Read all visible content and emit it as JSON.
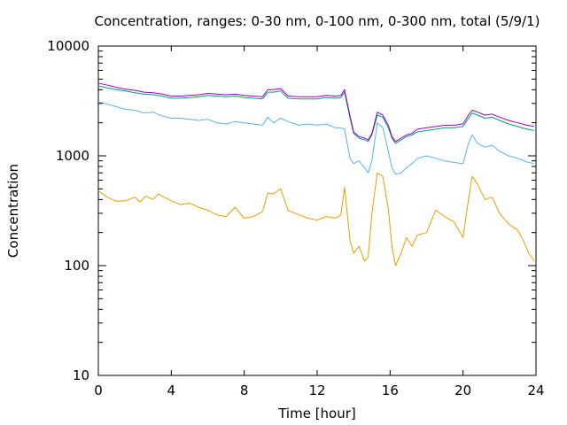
{
  "chart_data": {
    "type": "line",
    "title": "Concentration, ranges: 0-30 nm, 0-100 nm, 0-300 nm, total (5/9/1)",
    "xlabel": "Time [hour]",
    "ylabel": "Concentration",
    "xlim": [
      0,
      24
    ],
    "ylim": [
      10,
      10000
    ],
    "yscale": "log",
    "grid": false,
    "xticks": [
      0,
      4,
      8,
      12,
      16,
      20,
      24
    ],
    "xtick_labels": [
      "0",
      "4",
      "8",
      "12",
      "16",
      "20",
      "24"
    ],
    "yticks": [
      10,
      100,
      1000,
      10000
    ],
    "ytick_labels": [
      "10",
      "100",
      "1000",
      "10000"
    ],
    "series": [
      {
        "color": "#E69F00",
        "x": [
          0,
          0.5,
          1,
          1.5,
          2,
          2.3,
          2.6,
          3,
          3.3,
          3.6,
          4,
          4.5,
          5,
          5.5,
          6,
          6.5,
          7,
          7.5,
          8,
          8.5,
          9,
          9.3,
          9.6,
          10,
          10.4,
          11,
          11.5,
          12,
          12.5,
          13,
          13.3,
          13.5,
          13.8,
          14,
          14.3,
          14.6,
          14.8,
          15,
          15.3,
          15.6,
          15.9,
          16.1,
          16.3,
          16.6,
          16.9,
          17.2,
          17.5,
          18,
          18.5,
          19,
          19.5,
          20,
          20.3,
          20.5,
          20.8,
          21.2,
          21.6,
          22,
          22.5,
          23,
          23.3,
          23.6,
          23.9
        ],
        "values": [
          480,
          420,
          385,
          390,
          420,
          380,
          430,
          400,
          450,
          420,
          390,
          360,
          370,
          340,
          320,
          290,
          280,
          340,
          270,
          280,
          310,
          460,
          450,
          500,
          320,
          290,
          270,
          260,
          280,
          270,
          290,
          520,
          170,
          130,
          150,
          110,
          120,
          300,
          700,
          650,
          330,
          150,
          100,
          130,
          180,
          150,
          190,
          200,
          320,
          280,
          250,
          180,
          400,
          650,
          550,
          400,
          420,
          300,
          240,
          210,
          170,
          130,
          110
        ]
      },
      {
        "color": "#56B4E9",
        "x": [
          0,
          0.5,
          1,
          1.5,
          2,
          2.5,
          3,
          3.5,
          4,
          4.5,
          5,
          5.5,
          6,
          6.5,
          7,
          7.5,
          8,
          8.5,
          9,
          9.3,
          9.6,
          10,
          10.4,
          11,
          11.5,
          12,
          12.5,
          13,
          13.3,
          13.5,
          13.8,
          14,
          14.3,
          14.6,
          14.8,
          15,
          15.3,
          15.6,
          15.9,
          16.1,
          16.3,
          16.6,
          16.9,
          17.2,
          17.5,
          18,
          18.5,
          19,
          19.5,
          20,
          20.3,
          20.5,
          20.8,
          21.2,
          21.6,
          22,
          22.5,
          23,
          23.5,
          23.9
        ],
        "values": [
          3100,
          2950,
          2800,
          2650,
          2600,
          2450,
          2500,
          2300,
          2200,
          2200,
          2150,
          2100,
          2150,
          2000,
          1950,
          2050,
          2000,
          1950,
          1900,
          2250,
          2000,
          2200,
          2050,
          1900,
          1950,
          1900,
          1950,
          1800,
          1800,
          1750,
          950,
          850,
          900,
          780,
          700,
          900,
          2000,
          1800,
          1100,
          780,
          680,
          700,
          780,
          850,
          950,
          1000,
          950,
          900,
          870,
          850,
          1300,
          1550,
          1300,
          1200,
          1250,
          1100,
          1000,
          950,
          880,
          850
        ]
      },
      {
        "color": "#009E73",
        "x": [
          0,
          0.5,
          1,
          1.5,
          2,
          2.5,
          3,
          3.5,
          4,
          4.5,
          5,
          5.5,
          6,
          6.5,
          7,
          7.5,
          8,
          8.5,
          9,
          9.3,
          9.6,
          10,
          10.4,
          11,
          11.5,
          12,
          12.5,
          13,
          13.3,
          13.5,
          13.8,
          14,
          14.3,
          14.6,
          14.8,
          15,
          15.3,
          15.6,
          15.9,
          16.1,
          16.3,
          16.6,
          16.9,
          17.2,
          17.5,
          18,
          18.5,
          19,
          19.5,
          20,
          20.3,
          20.5,
          20.8,
          21.2,
          21.6,
          22,
          22.5,
          23,
          23.5,
          23.9
        ],
        "values": [
          4350,
          4150,
          4000,
          3900,
          3750,
          3650,
          3600,
          3500,
          3350,
          3350,
          3400,
          3450,
          3550,
          3500,
          3450,
          3500,
          3400,
          3350,
          3300,
          3800,
          3800,
          3900,
          3350,
          3300,
          3300,
          3300,
          3400,
          3350,
          3400,
          3800,
          2200,
          1600,
          1450,
          1400,
          1350,
          1550,
          2350,
          2250,
          1800,
          1450,
          1300,
          1400,
          1500,
          1550,
          1650,
          1700,
          1750,
          1800,
          1800,
          1850,
          2200,
          2450,
          2350,
          2200,
          2250,
          2100,
          1950,
          1850,
          1750,
          1700
        ]
      },
      {
        "color": "#9400D3",
        "x": [
          0,
          0.5,
          1,
          1.5,
          2,
          2.5,
          3,
          3.5,
          4,
          4.5,
          5,
          5.5,
          6,
          6.5,
          7,
          7.5,
          8,
          8.5,
          9,
          9.3,
          9.6,
          10,
          10.4,
          11,
          11.5,
          12,
          12.5,
          13,
          13.3,
          13.5,
          13.8,
          14,
          14.3,
          14.6,
          14.8,
          15,
          15.3,
          15.6,
          15.9,
          16.1,
          16.3,
          16.6,
          16.9,
          17.2,
          17.5,
          18,
          18.5,
          19,
          19.5,
          20,
          20.3,
          20.5,
          20.8,
          21.2,
          21.6,
          22,
          22.5,
          23,
          23.5,
          23.9
        ],
        "values": [
          4600,
          4400,
          4200,
          4050,
          3950,
          3800,
          3750,
          3650,
          3500,
          3500,
          3550,
          3600,
          3700,
          3650,
          3600,
          3650,
          3550,
          3500,
          3450,
          4000,
          4000,
          4100,
          3500,
          3450,
          3450,
          3450,
          3550,
          3500,
          3550,
          4000,
          2300,
          1650,
          1500,
          1450,
          1400,
          1600,
          2500,
          2350,
          1900,
          1500,
          1350,
          1450,
          1550,
          1600,
          1750,
          1800,
          1850,
          1900,
          1900,
          1950,
          2350,
          2600,
          2500,
          2350,
          2400,
          2250,
          2100,
          2000,
          1900,
          1850
        ]
      }
    ]
  }
}
